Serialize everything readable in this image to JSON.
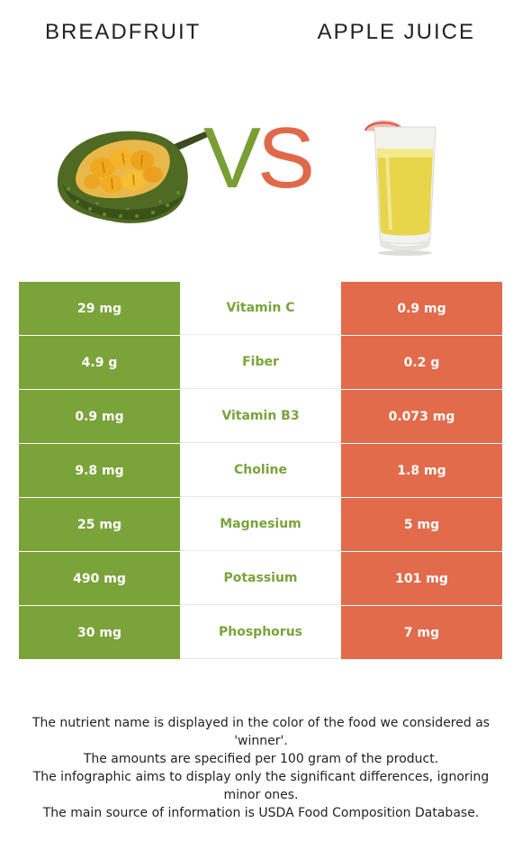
{
  "header": {
    "left_title": "BREADFRUIT",
    "right_title": "APPLE JUICE",
    "vs_v": "V",
    "vs_s": "S"
  },
  "colors": {
    "left_food": "#7aa33a",
    "right_food": "#e26b4b"
  },
  "rows": [
    {
      "left": "29 mg",
      "nutrient": "Vitamin C",
      "right": "0.9 mg",
      "winner": "left"
    },
    {
      "left": "4.9 g",
      "nutrient": "Fiber",
      "right": "0.2 g",
      "winner": "left"
    },
    {
      "left": "0.9 mg",
      "nutrient": "Vitamin B3",
      "right": "0.073 mg",
      "winner": "left"
    },
    {
      "left": "9.8 mg",
      "nutrient": "Choline",
      "right": "1.8 mg",
      "winner": "left"
    },
    {
      "left": "25 mg",
      "nutrient": "Magnesium",
      "right": "5 mg",
      "winner": "left"
    },
    {
      "left": "490 mg",
      "nutrient": "Potassium",
      "right": "101 mg",
      "winner": "left"
    },
    {
      "left": "30 mg",
      "nutrient": "Phosphorus",
      "right": "7 mg",
      "winner": "left"
    }
  ],
  "footnotes": [
    "The nutrient name is displayed in the color of the food we considered as 'winner'.",
    "The amounts are specified per 100 gram of the product.",
    "The infographic aims to display only the significant differences, ignoring minor ones.",
    "The main source of information is USDA Food Composition Database."
  ]
}
